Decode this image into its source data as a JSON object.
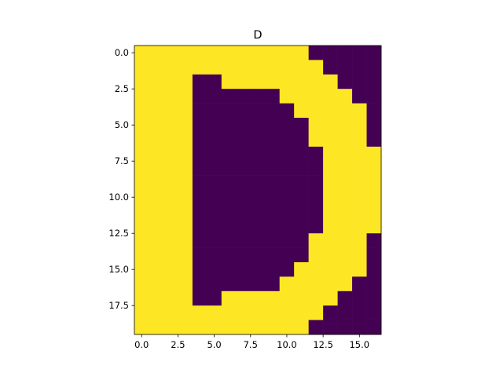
{
  "chart_data": {
    "type": "heatmap",
    "title": "D",
    "xlabel": "",
    "ylabel": "",
    "xlim": [
      -0.5,
      16.5
    ],
    "ylim": [
      19.5,
      -0.5
    ],
    "x_ticks": [
      "0.0",
      "2.5",
      "5.0",
      "7.5",
      "10.0",
      "12.5",
      "15.0"
    ],
    "x_tick_values": [
      0,
      2.5,
      5,
      7.5,
      10,
      12.5,
      15
    ],
    "y_ticks": [
      "0.0",
      "2.5",
      "5.0",
      "7.5",
      "10.0",
      "12.5",
      "15.0",
      "17.5"
    ],
    "y_tick_values": [
      0,
      2.5,
      5,
      7.5,
      10,
      12.5,
      15,
      17.5
    ],
    "colormap": {
      "low": "#440154",
      "high": "#fde725"
    },
    "grid": false,
    "values": [
      [
        1,
        1,
        1,
        1,
        1,
        1,
        1,
        1,
        1,
        1,
        1,
        1,
        0,
        0,
        0,
        0,
        0
      ],
      [
        1,
        1,
        1,
        1,
        1,
        1,
        1,
        1,
        1,
        1,
        1,
        1,
        1,
        0,
        0,
        0,
        0
      ],
      [
        1,
        1,
        1,
        1,
        0,
        0,
        1,
        1,
        1,
        1,
        1,
        1,
        1,
        1,
        0,
        0,
        0
      ],
      [
        1,
        1,
        1,
        1,
        0,
        0,
        0,
        0,
        0,
        0,
        1,
        1,
        1,
        1,
        1,
        0,
        0
      ],
      [
        1,
        1,
        1,
        1,
        0,
        0,
        0,
        0,
        0,
        0,
        0,
        1,
        1,
        1,
        1,
        1,
        0
      ],
      [
        1,
        1,
        1,
        1,
        0,
        0,
        0,
        0,
        0,
        0,
        0,
        0,
        1,
        1,
        1,
        1,
        0
      ],
      [
        1,
        1,
        1,
        1,
        0,
        0,
        0,
        0,
        0,
        0,
        0,
        0,
        1,
        1,
        1,
        1,
        0
      ],
      [
        1,
        1,
        1,
        1,
        0,
        0,
        0,
        0,
        0,
        0,
        0,
        0,
        0,
        1,
        1,
        1,
        1
      ],
      [
        1,
        1,
        1,
        1,
        0,
        0,
        0,
        0,
        0,
        0,
        0,
        0,
        0,
        1,
        1,
        1,
        1
      ],
      [
        1,
        1,
        1,
        1,
        0,
        0,
        0,
        0,
        0,
        0,
        0,
        0,
        0,
        1,
        1,
        1,
        1
      ],
      [
        1,
        1,
        1,
        1,
        0,
        0,
        0,
        0,
        0,
        0,
        0,
        0,
        0,
        1,
        1,
        1,
        1
      ],
      [
        1,
        1,
        1,
        1,
        0,
        0,
        0,
        0,
        0,
        0,
        0,
        0,
        0,
        1,
        1,
        1,
        1
      ],
      [
        1,
        1,
        1,
        1,
        0,
        0,
        0,
        0,
        0,
        0,
        0,
        0,
        0,
        1,
        1,
        1,
        1
      ],
      [
        1,
        1,
        1,
        1,
        0,
        0,
        0,
        0,
        0,
        0,
        0,
        0,
        1,
        1,
        1,
        1,
        0
      ],
      [
        1,
        1,
        1,
        1,
        0,
        0,
        0,
        0,
        0,
        0,
        0,
        0,
        1,
        1,
        1,
        1,
        0
      ],
      [
        1,
        1,
        1,
        1,
        0,
        0,
        0,
        0,
        0,
        0,
        0,
        1,
        1,
        1,
        1,
        1,
        0
      ],
      [
        1,
        1,
        1,
        1,
        0,
        0,
        0,
        0,
        0,
        0,
        1,
        1,
        1,
        1,
        1,
        0,
        0
      ],
      [
        1,
        1,
        1,
        1,
        0,
        0,
        1,
        1,
        1,
        1,
        1,
        1,
        1,
        1,
        0,
        0,
        0
      ],
      [
        1,
        1,
        1,
        1,
        1,
        1,
        1,
        1,
        1,
        1,
        1,
        1,
        1,
        0,
        0,
        0,
        0
      ],
      [
        1,
        1,
        1,
        1,
        1,
        1,
        1,
        1,
        1,
        1,
        1,
        1,
        0,
        0,
        0,
        0,
        0
      ]
    ]
  }
}
